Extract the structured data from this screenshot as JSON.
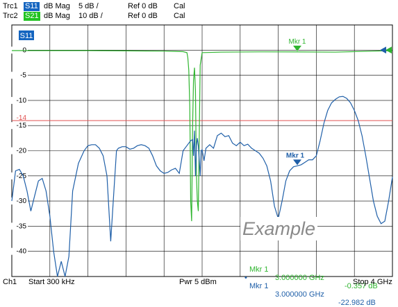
{
  "traces": [
    {
      "id": "Trc1",
      "param": "S11",
      "format": "dB Mag",
      "scale": "5 dB /",
      "ref": "Ref 0 dB",
      "cal": "Cal",
      "color": "#1f5fa8",
      "badge_color": "#1565c0"
    },
    {
      "id": "Trc2",
      "param": "S21",
      "format": "dB Mag",
      "scale": "10 dB /",
      "ref": "Ref 0 dB",
      "cal": "Cal",
      "color": "#2fb52f",
      "badge_color": "#21c321"
    }
  ],
  "diagram_label": "S11",
  "y_ticks": [
    "0",
    "-5",
    "-10",
    "-14",
    "-15",
    "-20",
    "-25",
    "-30",
    "-35",
    "-40"
  ],
  "limit_line": {
    "value": -14,
    "color": "#e05050"
  },
  "markers": {
    "s21_label": "Mkr 1",
    "s11_label": "Mkr 1"
  },
  "marker_readouts": [
    {
      "bullet": "",
      "name": "Mkr 1",
      "freq": "3.000000 GHz",
      "value": "-0.357 dB",
      "color": "#2fb52f"
    },
    {
      "bullet": "•",
      "name": "Mkr 1",
      "freq": "3.000000 GHz",
      "value": "-22.982 dB",
      "color": "#1f5fa8"
    }
  ],
  "watermark": "Example",
  "footer": {
    "channel": "Ch1",
    "start": "Start  300 kHz",
    "power": "Pwr  5 dBm",
    "stop": "Stop  4 GHz"
  },
  "chart_data": {
    "type": "line",
    "x_range_ghz": [
      0.0003,
      4
    ],
    "y_range_db": [
      -45,
      5
    ],
    "grid": true,
    "series": [
      {
        "name": "S11",
        "x_ghz": [
          0.0003,
          0.04,
          0.08,
          0.12,
          0.16,
          0.2,
          0.24,
          0.28,
          0.32,
          0.36,
          0.4,
          0.44,
          0.48,
          0.52,
          0.56,
          0.6,
          0.64,
          0.7,
          0.76,
          0.8,
          0.84,
          0.88,
          0.92,
          0.96,
          1.0,
          1.04,
          1.08,
          1.1,
          1.12,
          1.16,
          1.2,
          1.24,
          1.28,
          1.32,
          1.36,
          1.4,
          1.44,
          1.48,
          1.52,
          1.56,
          1.6,
          1.64,
          1.68,
          1.72,
          1.76,
          1.8,
          1.84,
          1.88,
          1.9,
          1.91,
          1.92,
          1.93,
          1.94,
          1.95,
          1.96,
          1.97,
          1.98,
          1.99,
          2.0,
          2.02,
          2.04,
          2.08,
          2.12,
          2.16,
          2.2,
          2.24,
          2.28,
          2.32,
          2.36,
          2.4,
          2.44,
          2.48,
          2.52,
          2.56,
          2.6,
          2.64,
          2.68,
          2.72,
          2.76,
          2.8,
          2.84,
          2.88,
          2.92,
          2.96,
          3.0,
          3.04,
          3.08,
          3.12,
          3.16,
          3.2,
          3.24,
          3.28,
          3.32,
          3.36,
          3.4,
          3.44,
          3.48,
          3.52,
          3.56,
          3.6,
          3.64,
          3.68,
          3.72,
          3.76,
          3.8,
          3.84,
          3.88,
          3.92,
          3.96,
          4.0
        ],
        "y_db": [
          -30,
          -24,
          -23.7,
          -25,
          -28,
          -32,
          -29,
          -26,
          -25.5,
          -28,
          -33,
          -40,
          -45,
          -42,
          -45,
          -41,
          -28,
          -22.5,
          -20,
          -19,
          -18.8,
          -18.8,
          -19.5,
          -21,
          -25,
          -38,
          -26,
          -20,
          -19.5,
          -19.2,
          -19.2,
          -19.7,
          -19.5,
          -19,
          -18.8,
          -19,
          -19.5,
          -21,
          -23,
          -24,
          -24.5,
          -24.3,
          -23.8,
          -23.5,
          -24.5,
          -20,
          -19,
          -18,
          -17.8,
          -21,
          -16,
          -25,
          -19,
          -17.5,
          -19,
          -22,
          -25,
          -20,
          -19.8,
          -22,
          -19.5,
          -18.8,
          -19.5,
          -17,
          -16.5,
          -17.2,
          -17,
          -18.5,
          -19,
          -18.3,
          -19,
          -18.7,
          -19.5,
          -20,
          -20.5,
          -21.5,
          -23,
          -26,
          -31,
          -33.5,
          -30,
          -26,
          -24,
          -23.2,
          -23,
          -22.8,
          -22.3,
          -21.8,
          -21.8,
          -21,
          -18,
          -14.5,
          -12,
          -10.5,
          -9.8,
          -9.3,
          -9.2,
          -9.6,
          -10.5,
          -12,
          -14,
          -17,
          -21,
          -25.5,
          -30,
          -33,
          -34.5,
          -34,
          -30,
          -25.2
        ]
      },
      {
        "name": "S21",
        "x_ghz": [
          0.0003,
          0.4,
          0.8,
          1.2,
          1.6,
          1.8,
          1.84,
          1.85,
          1.86,
          1.87,
          1.875,
          1.88,
          1.89,
          1.9,
          1.91,
          1.92,
          1.93,
          1.94,
          1.95,
          1.96,
          1.98,
          2.0,
          2.2,
          2.6,
          3.0,
          3.4,
          3.8,
          4.0
        ],
        "y_db": [
          -0.1,
          -0.1,
          -0.1,
          -0.15,
          -0.2,
          -0.3,
          -0.5,
          -1.5,
          -4,
          -11,
          -20,
          -30,
          -34,
          -15,
          -6,
          -3.5,
          -8,
          -25,
          -30,
          -32,
          -3,
          -0.5,
          -0.4,
          -0.35,
          -0.357,
          -0.4,
          -0.2,
          -0.1
        ]
      }
    ],
    "marker_x_ghz": 3.0
  }
}
